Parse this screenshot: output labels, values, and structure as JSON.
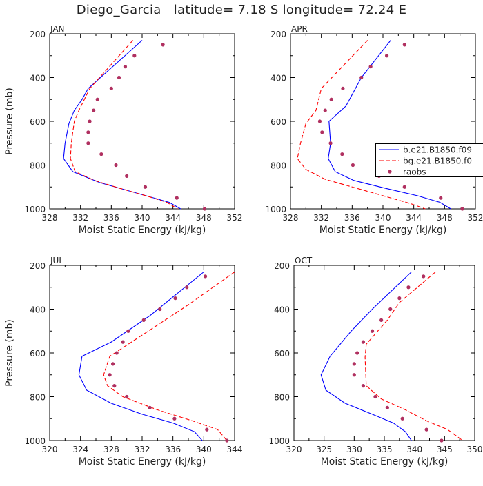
{
  "title": "Diego_Garcia   latitude= 7.18 S longitude= 72.24 E",
  "chart_data": [
    {
      "type": "line",
      "panel": "JAN",
      "xlabel": "Moist Static Energy (kJ/kg)",
      "ylabel": "Pressure (mb)",
      "xlim": [
        328,
        352
      ],
      "ylim": [
        1000,
        200
      ],
      "xticks": [
        328,
        332,
        336,
        340,
        344,
        348,
        352
      ],
      "yticks": [
        200,
        400,
        600,
        800,
        1000
      ],
      "series": [
        {
          "name": "b.e21.B1850.f09",
          "style": "solid",
          "color": "#0000ff",
          "points": [
            [
              340.0,
              230
            ],
            [
              333.0,
              450
            ],
            [
              332.2,
              500
            ],
            [
              331.2,
              550
            ],
            [
              330.5,
              610
            ],
            [
              330.0,
              700
            ],
            [
              329.8,
              770
            ],
            [
              331.0,
              830
            ],
            [
              334.5,
              880
            ],
            [
              338.0,
              915
            ],
            [
              341.5,
              950
            ],
            [
              343.5,
              970
            ],
            [
              345.0,
              1000
            ]
          ]
        },
        {
          "name": "bg.e21.B1850.f0",
          "style": "dashed",
          "color": "#ff0000",
          "points": [
            [
              338.8,
              230
            ],
            [
              333.2,
              450
            ],
            [
              331.8,
              550
            ],
            [
              331.2,
              600
            ],
            [
              330.8,
              700
            ],
            [
              330.7,
              770
            ],
            [
              331.3,
              830
            ],
            [
              333.8,
              870
            ],
            [
              337.0,
              905
            ],
            [
              340.5,
              940
            ],
            [
              343.2,
              970
            ],
            [
              344.6,
              1000
            ]
          ]
        },
        {
          "name": "raobs",
          "style": "dots",
          "color": "#b03060",
          "points": [
            [
              342.7,
              250
            ],
            [
              339.0,
              300
            ],
            [
              337.8,
              350
            ],
            [
              337.0,
              400
            ],
            [
              336.0,
              450
            ],
            [
              334.2,
              500
            ],
            [
              333.7,
              550
            ],
            [
              333.2,
              600
            ],
            [
              333.0,
              650
            ],
            [
              333.0,
              700
            ],
            [
              334.7,
              750
            ],
            [
              336.6,
              800
            ],
            [
              338.0,
              850
            ],
            [
              340.4,
              900
            ],
            [
              344.5,
              950
            ],
            [
              348.1,
              1000
            ]
          ]
        }
      ]
    },
    {
      "type": "line",
      "panel": "APR",
      "xlabel": "Moist Static Energy (kJ/kg)",
      "ylabel": "",
      "xlim": [
        328,
        352
      ],
      "ylim": [
        1000,
        200
      ],
      "xticks": [
        328,
        332,
        336,
        340,
        344,
        348,
        352
      ],
      "yticks": [
        200,
        400,
        600,
        800,
        1000
      ],
      "legend": "right",
      "series": [
        {
          "name": "b.e21.B1850.f09",
          "style": "solid",
          "color": "#0000ff",
          "points": [
            [
              341.0,
              230
            ],
            [
              337.2,
              400
            ],
            [
              335.2,
              530
            ],
            [
              333.0,
              600
            ],
            [
              333.2,
              700
            ],
            [
              332.9,
              770
            ],
            [
              333.8,
              830
            ],
            [
              336.2,
              870
            ],
            [
              340.2,
              905
            ],
            [
              344.5,
              940
            ],
            [
              347.4,
              970
            ],
            [
              348.8,
              1000
            ]
          ]
        },
        {
          "name": "bg.e21.B1850.f0",
          "style": "dashed",
          "color": "#ff0000",
          "points": [
            [
              338.0,
              230
            ],
            [
              332.0,
              450
            ],
            [
              331.3,
              550
            ],
            [
              330.0,
              610
            ],
            [
              329.3,
              700
            ],
            [
              328.9,
              770
            ],
            [
              330.0,
              820
            ],
            [
              332.5,
              865
            ],
            [
              336.5,
              905
            ],
            [
              340.5,
              945
            ],
            [
              343.5,
              975
            ],
            [
              345.5,
              1000
            ]
          ]
        },
        {
          "name": "raobs",
          "style": "dots",
          "color": "#b03060",
          "points": [
            [
              342.8,
              250
            ],
            [
              340.5,
              300
            ],
            [
              338.4,
              350
            ],
            [
              337.2,
              400
            ],
            [
              334.8,
              450
            ],
            [
              333.3,
              500
            ],
            [
              332.5,
              550
            ],
            [
              331.8,
              600
            ],
            [
              332.1,
              650
            ],
            [
              333.2,
              700
            ],
            [
              334.7,
              750
            ],
            [
              336.1,
              800
            ],
            [
              339.5,
              850
            ],
            [
              342.8,
              900
            ],
            [
              347.5,
              950
            ],
            [
              350.3,
              1000
            ]
          ]
        }
      ]
    },
    {
      "type": "line",
      "panel": "JUL",
      "xlabel": "Moist Static Energy (kJ/kg)",
      "ylabel": "Pressure (mb)",
      "xlim": [
        320,
        344
      ],
      "ylim": [
        1000,
        200
      ],
      "xticks": [
        320,
        324,
        328,
        332,
        336,
        340,
        344
      ],
      "yticks": [
        200,
        400,
        600,
        800,
        1000
      ],
      "series": [
        {
          "name": "b.e21.B1850.f09",
          "style": "solid",
          "color": "#0000ff",
          "points": [
            [
              340.0,
              230
            ],
            [
              333.0,
              430
            ],
            [
              328.0,
              550
            ],
            [
              324.2,
              615
            ],
            [
              323.8,
              700
            ],
            [
              324.8,
              770
            ],
            [
              328.0,
              830
            ],
            [
              332.0,
              880
            ],
            [
              336.0,
              920
            ],
            [
              338.8,
              960
            ],
            [
              339.8,
              1000
            ]
          ]
        },
        {
          "name": "bg.e21.B1850.f0",
          "style": "dashed",
          "color": "#ff0000",
          "points": [
            [
              344.0,
              230
            ],
            [
              338.0,
              380
            ],
            [
              332.8,
              500
            ],
            [
              327.8,
              615
            ],
            [
              327.0,
              700
            ],
            [
              327.5,
              750
            ],
            [
              329.5,
              800
            ],
            [
              334.0,
              860
            ],
            [
              338.5,
              910
            ],
            [
              341.8,
              950
            ],
            [
              343.0,
              1000
            ]
          ]
        },
        {
          "name": "raobs",
          "style": "dots",
          "color": "#b03060",
          "points": [
            [
              340.2,
              250
            ],
            [
              337.8,
              300
            ],
            [
              336.3,
              350
            ],
            [
              334.3,
              400
            ],
            [
              332.2,
              450
            ],
            [
              330.2,
              500
            ],
            [
              329.5,
              550
            ],
            [
              328.7,
              600
            ],
            [
              328.2,
              650
            ],
            [
              327.8,
              700
            ],
            [
              328.4,
              750
            ],
            [
              330.0,
              800
            ],
            [
              333.0,
              850
            ],
            [
              336.2,
              900
            ],
            [
              340.4,
              950
            ],
            [
              343.0,
              1000
            ]
          ]
        }
      ]
    },
    {
      "type": "line",
      "panel": "OCT",
      "xlabel": "Moist Static Energy (kJ/kg)",
      "ylabel": "",
      "xlim": [
        320,
        350
      ],
      "ylim": [
        1000,
        200
      ],
      "xticks": [
        320,
        325,
        330,
        335,
        340,
        345,
        350
      ],
      "yticks": [
        200,
        400,
        600,
        800,
        1000
      ],
      "series": [
        {
          "name": "b.e21.B1850.f09",
          "style": "solid",
          "color": "#0000ff",
          "points": [
            [
              339.5,
              230
            ],
            [
              333.0,
              400
            ],
            [
              329.5,
              500
            ],
            [
              326.0,
              615
            ],
            [
              324.5,
              700
            ],
            [
              325.3,
              770
            ],
            [
              328.5,
              830
            ],
            [
              333.0,
              880
            ],
            [
              336.5,
              920
            ],
            [
              338.5,
              960
            ],
            [
              339.5,
              1000
            ]
          ]
        },
        {
          "name": "bg.e21.B1850.f0",
          "style": "dashed",
          "color": "#ff0000",
          "points": [
            [
              343.5,
              230
            ],
            [
              337.5,
              370
            ],
            [
              335.5,
              450
            ],
            [
              332.0,
              560
            ],
            [
              331.8,
              620
            ],
            [
              332.0,
              750
            ],
            [
              334.5,
              810
            ],
            [
              338.5,
              860
            ],
            [
              342.0,
              910
            ],
            [
              345.5,
              950
            ],
            [
              348.0,
              1000
            ]
          ]
        },
        {
          "name": "raobs",
          "style": "dots",
          "color": "#b03060",
          "points": [
            [
              341.5,
              250
            ],
            [
              339.0,
              300
            ],
            [
              337.5,
              350
            ],
            [
              336.0,
              400
            ],
            [
              334.5,
              450
            ],
            [
              333.0,
              500
            ],
            [
              331.5,
              550
            ],
            [
              330.5,
              600
            ],
            [
              330.0,
              650
            ],
            [
              330.0,
              700
            ],
            [
              331.5,
              750
            ],
            [
              333.5,
              800
            ],
            [
              335.5,
              850
            ],
            [
              338.0,
              900
            ],
            [
              342.0,
              950
            ],
            [
              344.5,
              1000
            ]
          ]
        }
      ]
    }
  ]
}
